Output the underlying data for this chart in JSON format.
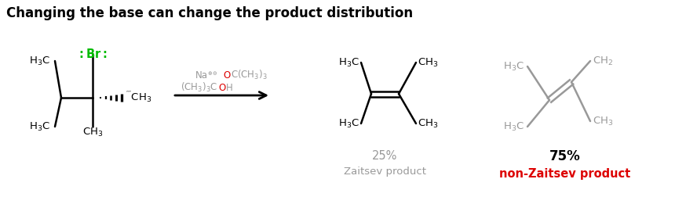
{
  "title": "Changing the base can change the product distribution",
  "title_fontsize": 12,
  "title_fontweight": "bold",
  "bg_color": "#ffffff",
  "green": "#00bb00",
  "red": "#dd0000",
  "gray": "#999999",
  "black": "#000000",
  "product1_pct": "25%",
  "product1_label": "Zaitsev product",
  "product1_pct_color": "#999999",
  "product1_label_color": "#999999",
  "product2_pct": "75%",
  "product2_label": "non-Zaitsev product",
  "product2_pct_color": "#000000",
  "product2_label_color": "#dd0000"
}
